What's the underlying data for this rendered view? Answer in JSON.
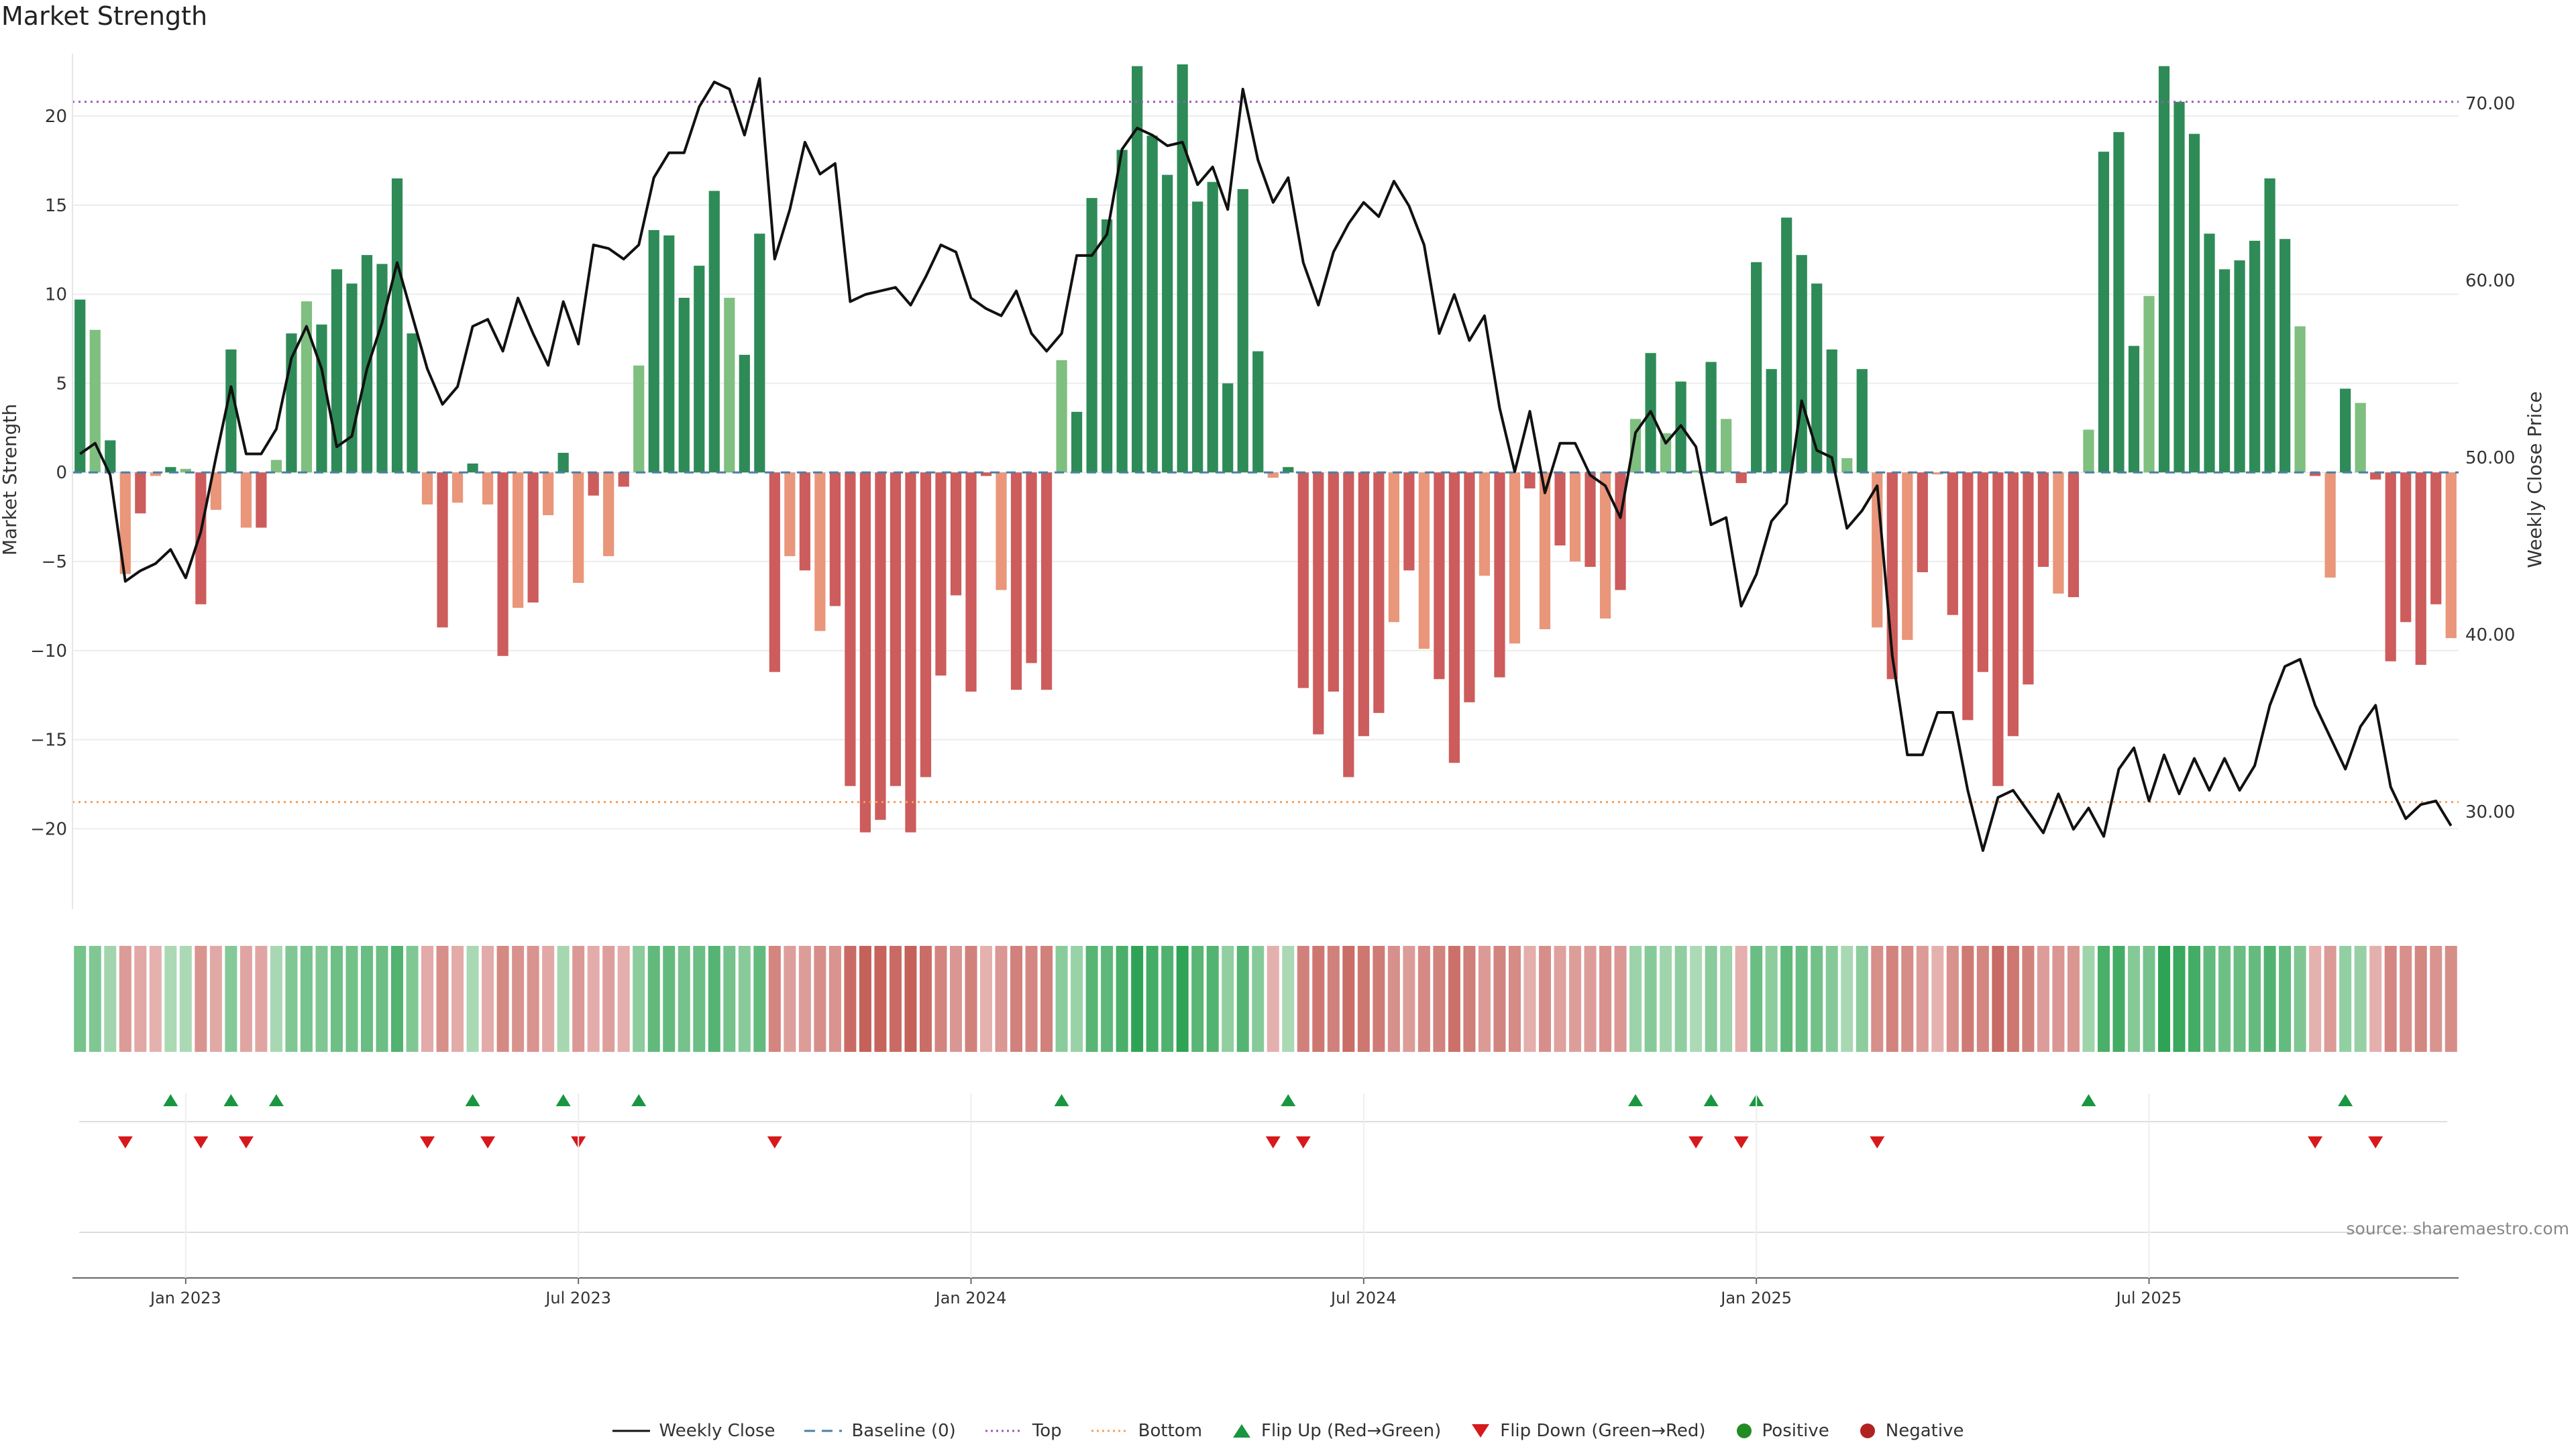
{
  "chart_data": {
    "type": "bar",
    "title": "Market Strength",
    "ylabel": "Market Strength",
    "y2label": "Weekly Close Price",
    "ylim": [
      -24.5,
      23.5
    ],
    "y2lim": [
      24.5,
      72.8
    ],
    "yticks": [
      20,
      15,
      10,
      5,
      0,
      -5,
      -10,
      -15,
      -20
    ],
    "y2ticks": [
      "70.00",
      "60.00",
      "50.00",
      "40.00",
      "30.00"
    ],
    "xticks": [
      {
        "week": 7,
        "label": "Jan 2023"
      },
      {
        "week": 33,
        "label": "Jul 2023"
      },
      {
        "week": 59,
        "label": "Jan 2024"
      },
      {
        "week": 85,
        "label": "Jul 2024"
      },
      {
        "week": 111,
        "label": "Jan 2025"
      },
      {
        "week": 137,
        "label": "Jul 2025"
      }
    ],
    "reference_lines": {
      "top": 20.8,
      "bottom": -18.5,
      "baseline": 0
    },
    "strength": [
      9.7,
      8.0,
      1.8,
      -5.7,
      -2.3,
      -0.2,
      0.3,
      0.2,
      -7.4,
      -2.1,
      6.9,
      -3.1,
      -3.1,
      0.7,
      7.8,
      9.6,
      8.3,
      11.4,
      10.6,
      12.2,
      11.7,
      16.5,
      7.8,
      -1.8,
      -8.7,
      -1.7,
      0.5,
      -1.8,
      -10.3,
      -7.6,
      -7.3,
      -2.4,
      1.1,
      -6.2,
      -1.3,
      -4.7,
      -0.8,
      6.0,
      13.6,
      13.3,
      9.8,
      11.6,
      15.8,
      9.8,
      6.6,
      13.4,
      -11.2,
      -4.7,
      -5.5,
      -8.9,
      -7.5,
      -17.6,
      -20.2,
      -19.5,
      -17.6,
      -20.2,
      -17.1,
      -11.4,
      -6.9,
      -12.3,
      -0.2,
      -6.6,
      -12.2,
      -10.7,
      -12.2,
      6.3,
      3.4,
      15.4,
      14.2,
      18.1,
      22.8,
      18.9,
      16.7,
      22.9,
      15.2,
      16.3,
      5.0,
      15.9,
      6.8,
      -0.3,
      0.3,
      -12.1,
      -14.7,
      -12.3,
      -17.1,
      -14.8,
      -13.5,
      -8.4,
      -5.5,
      -9.9,
      -11.6,
      -16.3,
      -12.9,
      -5.8,
      -11.5,
      -9.6,
      -0.9,
      -8.8,
      -4.1,
      -5.0,
      -5.3,
      -8.2,
      -6.6,
      3.0,
      6.7,
      2.2,
      5.1,
      0.0,
      6.2,
      3.0,
      -0.6,
      11.8,
      5.8,
      14.3,
      12.2,
      10.6,
      6.9,
      0.8,
      5.8,
      -8.7,
      -11.6,
      -9.4,
      -5.6,
      -0.1,
      -8.0,
      -13.9,
      -11.2,
      -17.6,
      -14.8,
      -11.9,
      -5.3,
      -6.8,
      -7.0,
      2.4,
      18.0,
      19.1,
      7.1,
      9.9,
      22.8,
      20.8,
      19.0,
      13.4,
      11.4,
      11.9,
      13.0,
      16.5,
      13.1,
      8.2,
      -0.2,
      -5.9,
      4.7,
      3.9,
      -0.4,
      -10.6,
      -8.4,
      -10.8,
      -7.4,
      -9.3
    ],
    "weekly_close": [
      50.2,
      50.8,
      49.0,
      43.0,
      43.6,
      44.0,
      44.8,
      43.2,
      45.8,
      50.0,
      54.0,
      50.2,
      50.2,
      51.6,
      55.6,
      57.4,
      55.0,
      50.6,
      51.2,
      55.0,
      57.6,
      61.0,
      58.0,
      55.0,
      53.0,
      54.0,
      57.4,
      57.8,
      56.0,
      59.0,
      57.0,
      55.2,
      58.8,
      56.4,
      62.0,
      61.8,
      61.2,
      62.0,
      65.8,
      67.2,
      67.2,
      69.8,
      71.2,
      70.8,
      68.2,
      71.4,
      61.2,
      64.0,
      67.8,
      66.0,
      66.6,
      58.8,
      59.2,
      59.4,
      59.6,
      58.6,
      60.2,
      62.0,
      61.6,
      59.0,
      58.4,
      58.0,
      59.4,
      57.0,
      56.0,
      57.0,
      61.4,
      61.4,
      62.6,
      67.4,
      68.6,
      68.2,
      67.6,
      67.8,
      65.4,
      66.4,
      64.0,
      70.8,
      66.8,
      64.4,
      65.8,
      61.0,
      58.6,
      61.6,
      63.2,
      64.4,
      63.6,
      65.6,
      64.2,
      62.0,
      57.0,
      59.2,
      56.6,
      58.0,
      52.8,
      49.2,
      52.6,
      48.0,
      50.8,
      50.8,
      49.0,
      48.4,
      46.6,
      51.4,
      52.6,
      50.8,
      51.8,
      50.6,
      46.2,
      46.6,
      41.6,
      43.4,
      46.4,
      47.4,
      53.2,
      50.4,
      50.0,
      46.0,
      47.0,
      48.4,
      38.8,
      33.2,
      33.2,
      35.6,
      35.6,
      31.2,
      27.8,
      30.8,
      31.2,
      30.0,
      28.8,
      31.0,
      29.0,
      30.2,
      28.6,
      32.4,
      33.6,
      30.6,
      33.2,
      31.0,
      33.0,
      31.2,
      33.0,
      31.2,
      32.6,
      36.0,
      38.2,
      38.6,
      36.0,
      34.2,
      32.4,
      34.8,
      36.0,
      31.4,
      29.6,
      30.4,
      30.6,
      29.2
    ],
    "flip_up_weeks": [
      6,
      10,
      13,
      26,
      32,
      37,
      65,
      80,
      103,
      108,
      111,
      133,
      150
    ],
    "flip_down_weeks": [
      3,
      8,
      11,
      23,
      27,
      33,
      46,
      79,
      81,
      107,
      110,
      119,
      148,
      152
    ],
    "legend": [
      "Weekly Close",
      "Baseline (0)",
      "Top",
      "Bottom",
      "Flip Up (Red→Green)",
      "Flip Down (Green→Red)",
      "Positive",
      "Negative"
    ]
  },
  "colors": {
    "strong_green": "#2e8b57",
    "light_green": "#7fbf7f",
    "strong_red": "#cd5c5c",
    "light_red": "#e9967a",
    "price_line": "#111111",
    "top_line": "#9b59b6",
    "bottom_line": "#f0a060",
    "flip_up": "#1a9641",
    "flip_down": "#d7191c",
    "positive": "#228b22",
    "negative": "#b22222"
  },
  "source": "source: sharemaestro.com"
}
